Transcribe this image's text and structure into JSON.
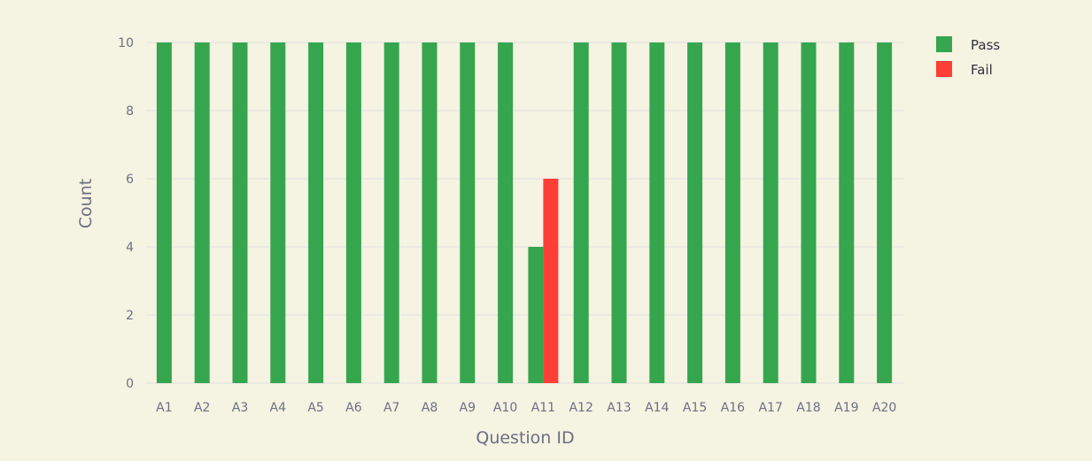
{
  "chart_data": {
    "type": "bar",
    "categories": [
      "A1",
      "A2",
      "A3",
      "A4",
      "A5",
      "A6",
      "A7",
      "A8",
      "A9",
      "A10",
      "A11",
      "A12",
      "A13",
      "A14",
      "A15",
      "A16",
      "A17",
      "A18",
      "A19",
      "A20"
    ],
    "series": [
      {
        "name": "Pass",
        "color": "#35a64e",
        "values": [
          10,
          10,
          10,
          10,
          10,
          10,
          10,
          10,
          10,
          10,
          4,
          10,
          10,
          10,
          10,
          10,
          10,
          10,
          10,
          10
        ]
      },
      {
        "name": "Fail",
        "color": "#ff3f35",
        "values": [
          0,
          0,
          0,
          0,
          0,
          0,
          0,
          0,
          0,
          0,
          6,
          0,
          0,
          0,
          0,
          0,
          0,
          0,
          0,
          0
        ]
      }
    ],
    "title": "",
    "xlabel": "Question ID",
    "ylabel": "Count",
    "ylim": [
      0,
      10
    ],
    "yticks": [
      0,
      2,
      4,
      6,
      8,
      10
    ],
    "grid": true,
    "legend_position": "top-right"
  }
}
